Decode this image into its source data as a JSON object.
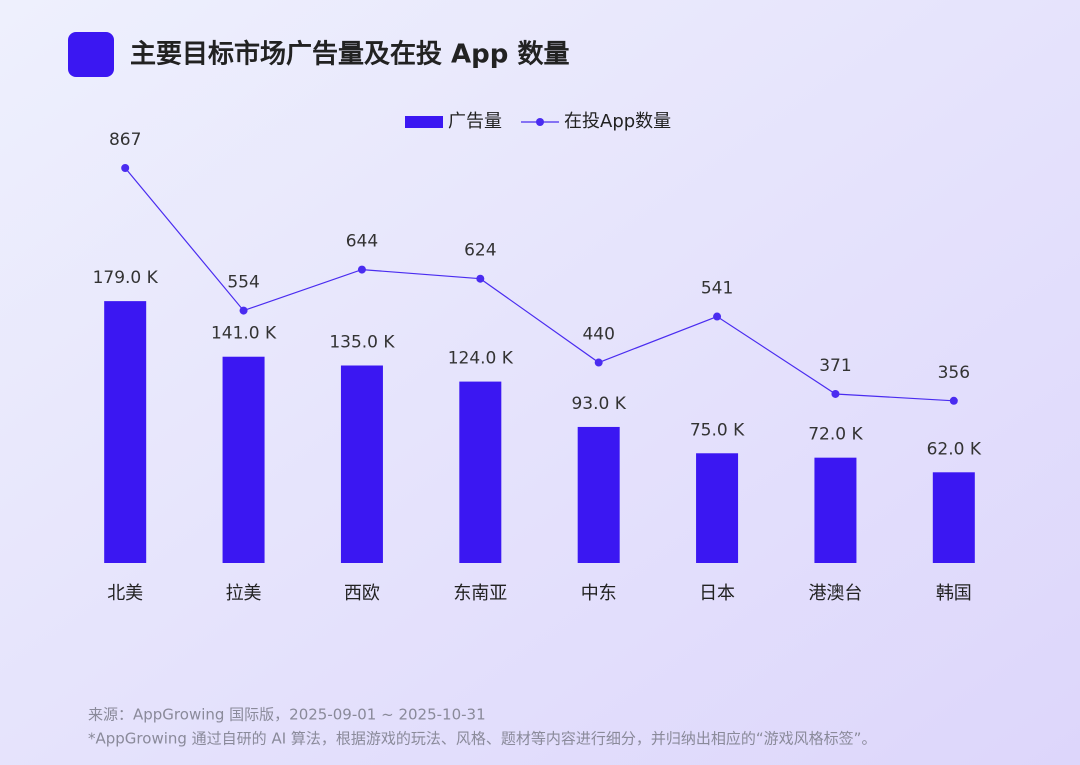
{
  "chart_data": {
    "type": "bar",
    "title": "主要目标市场广告量及在投 App 数量",
    "categories": [
      "北美",
      "拉美",
      "西欧",
      "东南亚",
      "中东",
      "日本",
      "港澳台",
      "韩国"
    ],
    "series": [
      {
        "name": "广告量",
        "type": "bar",
        "color": "#3b17f2",
        "values": [
          179.0,
          141.0,
          135.0,
          124.0,
          93.0,
          75.0,
          72.0,
          62.0
        ],
        "value_labels": [
          "179.0 K",
          "141.0 K",
          "135.0 K",
          "124.0 K",
          "93.0 K",
          "75.0 K",
          "72.0 K",
          "62.0 K"
        ]
      },
      {
        "name": "在投App数量",
        "type": "line",
        "axis": "y2",
        "color": "#4a2cf0",
        "values": [
          867,
          554,
          644,
          624,
          440,
          541,
          371,
          356
        ]
      }
    ],
    "ylim": [
      0,
      270
    ],
    "y2lim": [
      0,
      867
    ],
    "grid": false,
    "legend": "top"
  },
  "notes": [
    "来源：AppGrowing 国际版，2025-09-01 ~ 2025-10-31",
    "*AppGrowing 通过自研的 AI 算法，根据游戏的玩法、风格、题材等内容进行细分，并归纳出相应的“游戏风格标签”。"
  ]
}
